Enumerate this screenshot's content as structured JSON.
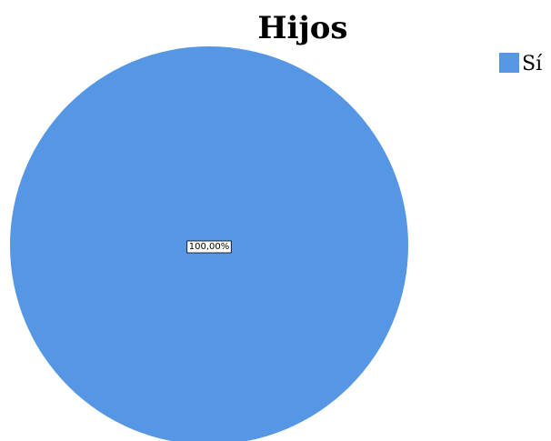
{
  "chart_data": {
    "type": "pie",
    "title": "Hijos",
    "categories": [
      "Sí"
    ],
    "values": [
      100
    ],
    "data_labels": [
      "100,00%"
    ],
    "colors": [
      "#5596e5"
    ],
    "legend": {
      "entries": [
        "Sí"
      ],
      "placement": "top-right"
    }
  }
}
